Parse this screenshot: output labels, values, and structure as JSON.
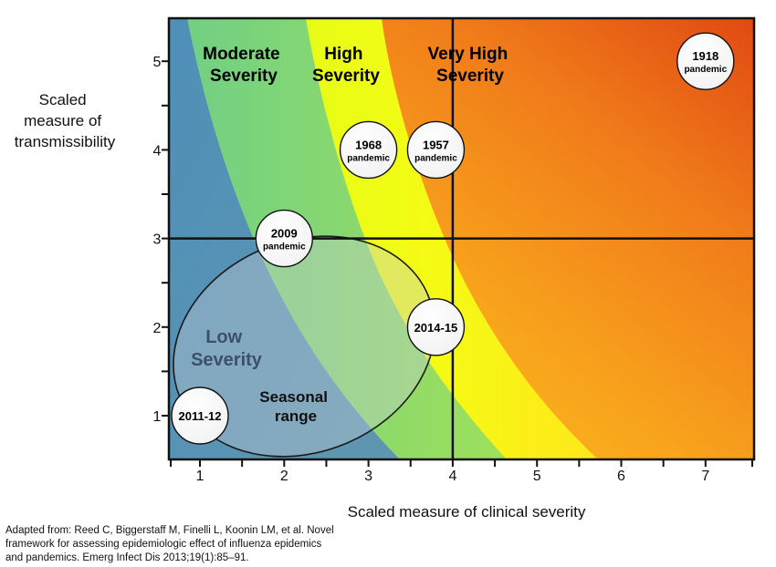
{
  "chart_data": {
    "type": "scatter",
    "xlabel": "Scaled measure of clinical severity",
    "ylabel": [
      "Scaled",
      "measure of",
      "transmissibility"
    ],
    "x_ticks": [
      1,
      2,
      3,
      4,
      5,
      6,
      7
    ],
    "y_ticks": [
      1,
      2,
      3,
      4,
      5
    ],
    "reference_lines": {
      "x": 4,
      "y": 3
    },
    "zones": [
      {
        "label": [
          "Low",
          "Severity"
        ],
        "color": "#3d4f6a"
      },
      {
        "label": [
          "Moderate",
          "Severity"
        ],
        "color": "#0d0d0d"
      },
      {
        "label": [
          "High",
          "Severity"
        ],
        "color": "#0d0d0d"
      },
      {
        "label": [
          "Very High",
          "Severity"
        ],
        "color": "#0d0d0d"
      }
    ],
    "seasonal_range": {
      "label": [
        "Seasonal",
        "range"
      ]
    },
    "points": [
      {
        "label": "1918",
        "sublabel": "pandemic",
        "x": 7,
        "y": 5
      },
      {
        "label": "1968",
        "sublabel": "pandemic",
        "x": 3,
        "y": 4
      },
      {
        "label": "1957",
        "sublabel": "pandemic",
        "x": 3.8,
        "y": 4
      },
      {
        "label": "2009",
        "sublabel": "pandemic",
        "x": 2,
        "y": 3
      },
      {
        "label": "2014-15",
        "sublabel": "",
        "x": 3.8,
        "y": 2
      },
      {
        "label": "2011-12",
        "sublabel": "",
        "x": 1,
        "y": 1
      }
    ]
  },
  "citation": "Adapted from: Reed C, Biggerstaff M, Finelli L,  Koonin LM, et al. Novel framework for assessing epidemiologic effect of influenza epidemics and pandemics. Emerg Infect Dis 2013;19(1):85–91."
}
